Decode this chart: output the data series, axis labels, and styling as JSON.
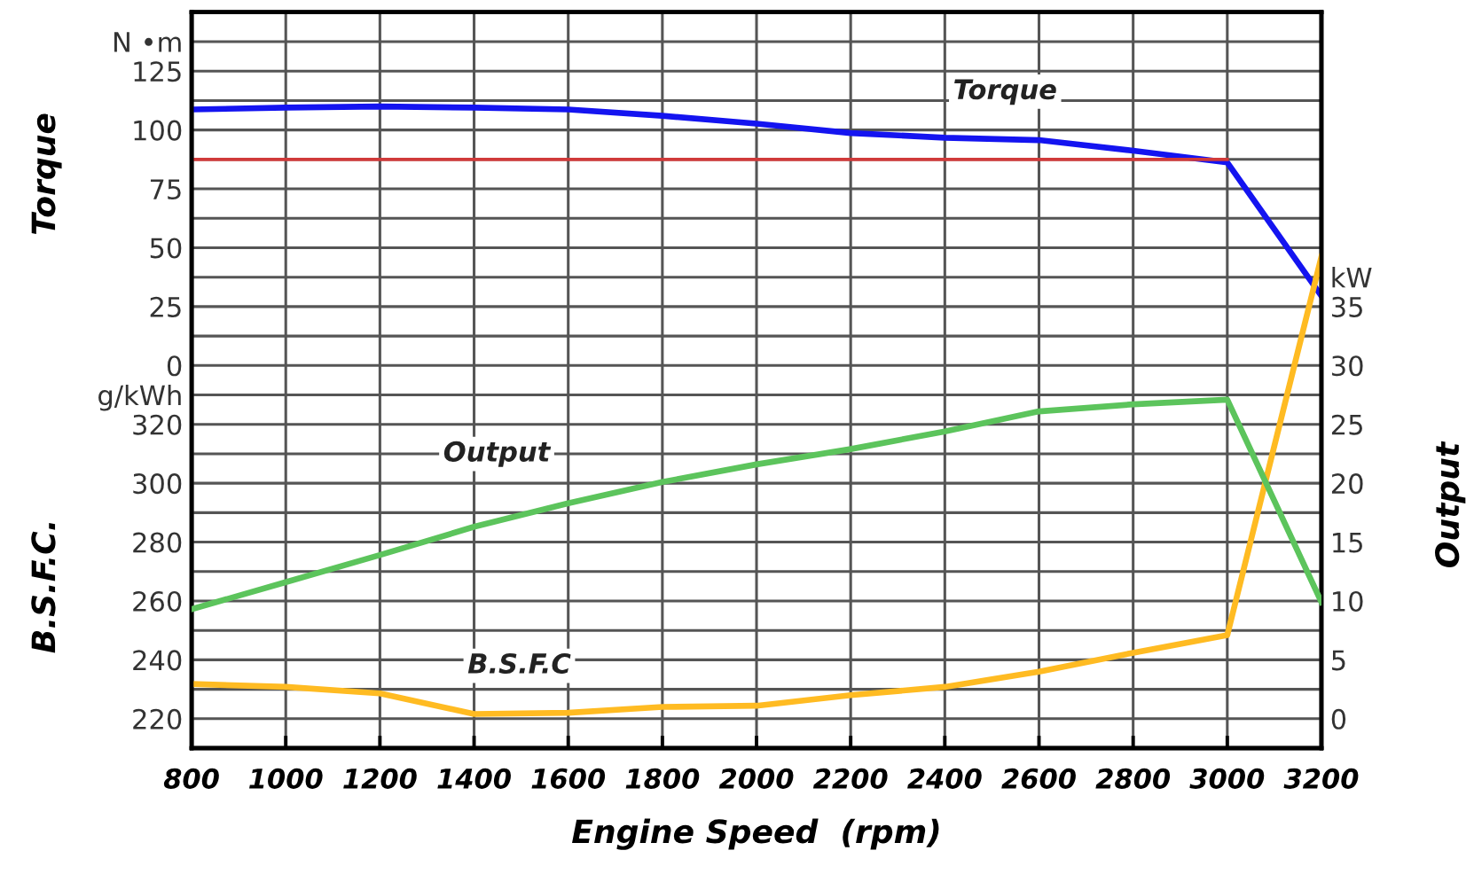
{
  "chart_data": {
    "type": "line",
    "xlabel": "Engine Speed  (rpm)",
    "ylabel": "Torque",
    "y2label": "Output",
    "y3label": "B.S.F.C.",
    "x": [
      800,
      1000,
      1200,
      1400,
      1600,
      1800,
      2000,
      2200,
      2400,
      2600,
      2800,
      3000,
      3200
    ],
    "xlim": [
      800,
      3200
    ],
    "xticks": [
      800,
      1000,
      1200,
      1400,
      1600,
      1800,
      2000,
      2200,
      2400,
      2600,
      2800,
      3000,
      3200
    ],
    "ylim": [
      -162.5,
      150
    ],
    "yticks": [
      0,
      {
        "value": 12.5,
        "label": null
      },
      25,
      {
        "value": 37.5,
        "label": null
      },
      50,
      {
        "value": 62.5,
        "label": null
      },
      75,
      {
        "value": 87.5,
        "label": null
      },
      100,
      {
        "value": 112.5,
        "label": null
      },
      125,
      {
        "value": 137.5,
        "label": "N •m"
      },
      {
        "value": 150,
        "label": null
      }
    ],
    "y3lim": [
      210,
      460
    ],
    "y3ticks": [
      {
        "value": 210,
        "label": null
      },
      220,
      {
        "value": 230,
        "label": null
      },
      240,
      {
        "value": 250,
        "label": null
      },
      260,
      {
        "value": 270,
        "label": null
      },
      280,
      {
        "value": 290,
        "label": null
      },
      300,
      {
        "value": 310,
        "label": null
      },
      320,
      {
        "value": 330,
        "label": "g/kWh"
      }
    ],
    "y2lim": [
      -2.5,
      60
    ],
    "y2ticks": [
      0,
      5,
      10,
      15,
      20,
      25,
      30,
      35,
      {
        "value": 37.5,
        "label": "kW"
      }
    ],
    "grid": true,
    "line_style": "solid",
    "marker": "none",
    "series": [
      {
        "name": "Torque",
        "axis": "y",
        "color": "#1414f0",
        "values": [
          108.7,
          109.5,
          110,
          109.5,
          108.7,
          106,
          102.7,
          98.7,
          96.7,
          95.7,
          91.2,
          86.2,
          29.5
        ]
      },
      {
        "axis": "y",
        "color": "#d03a3a",
        "x": [
          800,
          3000
        ],
        "values": [
          87.5,
          87.5
        ]
      },
      {
        "name": "Output",
        "axis": "y2",
        "color": "#5cc45c",
        "values": [
          9.3,
          11.6,
          13.9,
          16.3,
          18.3,
          20.1,
          21.6,
          22.9,
          24.4,
          26.1,
          26.7,
          27.1,
          9.9
        ]
      },
      {
        "name": "B.S.F.C",
        "axis": "y3",
        "color": "#ffbb22",
        "values": [
          231.8,
          230.8,
          228.6,
          221.6,
          222,
          224,
          224.4,
          228,
          230.8,
          236,
          242.4,
          248.4,
          377
        ]
      }
    ]
  }
}
